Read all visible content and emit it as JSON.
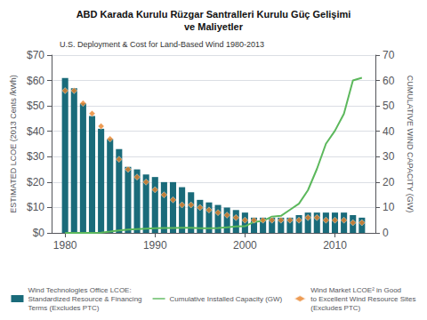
{
  "chart_data": {
    "type": "bar",
    "title": "ABD Karada Kurulu Rüzgar Santralleri Kurulu Güç Gelişimi\nve Maliyetler",
    "subtitle": "U.S. Deployment & Cost for Land-Based Wind 1980-2013",
    "ylabel": "ESTIMATED LCOE (2013 Cents /kWh)",
    "y2label": "CUMULATIVE WIND CAPACITY (GW)",
    "x": [
      1980,
      1981,
      1982,
      1983,
      1984,
      1985,
      1986,
      1987,
      1988,
      1989,
      1990,
      1991,
      1992,
      1993,
      1994,
      1995,
      1996,
      1997,
      1998,
      1999,
      2000,
      2001,
      2002,
      2003,
      2004,
      2005,
      2006,
      2007,
      2008,
      2009,
      2010,
      2011,
      2012,
      2013
    ],
    "xlim": [
      1978.5,
      2014.5
    ],
    "xticks": [
      1980,
      1990,
      2000,
      2010
    ],
    "ylim": [
      0,
      70
    ],
    "yticks": [
      {
        "value": 0,
        "label": "$0"
      },
      {
        "value": 10,
        "label": "$10"
      },
      {
        "value": 20,
        "label": "$20"
      },
      {
        "value": 30,
        "label": "$30"
      },
      {
        "value": 40,
        "label": "$40"
      },
      {
        "value": 50,
        "label": "$50"
      },
      {
        "value": 60,
        "label": "$60"
      },
      {
        "value": 70,
        "label": "$70"
      }
    ],
    "y2lim": [
      0,
      70
    ],
    "y2ticks": [
      0,
      10,
      20,
      30,
      40,
      50,
      60,
      70
    ],
    "grid": true,
    "legend": "bottom",
    "series": [
      {
        "name": "Wind Technologies Office LCOE:\nStandardized Resource & Financing\nTerms (Excludes PTC)",
        "type": "bar",
        "color": "#1a6b7a",
        "values": [
          61,
          57,
          51,
          46,
          41,
          37,
          33,
          26,
          25,
          23,
          22,
          20,
          20,
          18,
          16,
          13,
          12,
          11,
          10,
          9,
          8,
          6,
          6,
          6,
          6,
          6,
          7,
          8,
          8,
          8,
          8,
          8,
          7,
          6
        ]
      },
      {
        "name": "Cumulative Installed Capacity (GW)",
        "type": "line",
        "color": "#5cb85c",
        "axis": "y2",
        "values": [
          0.01,
          0.01,
          0.01,
          0.02,
          0.1,
          0.5,
          1.0,
          1.3,
          1.5,
          1.7,
          1.8,
          1.9,
          1.9,
          2.0,
          2.0,
          1.8,
          1.8,
          1.9,
          2.2,
          2.5,
          2.6,
          4.3,
          4.7,
          6.4,
          6.7,
          9.1,
          11.5,
          16.8,
          25.2,
          35.1,
          40.2,
          46.9,
          60.0,
          61.1
        ]
      },
      {
        "name": "Wind Market LCOE² in Good\nto Excellent Wind Resource Sites\n(Excludes PTC)",
        "type": "scatter",
        "color": "#e8832a",
        "marker": "diamond",
        "values": [
          56,
          56,
          51,
          47,
          42,
          37,
          29,
          25,
          22,
          20,
          17,
          15,
          13,
          11,
          11,
          10,
          9,
          8,
          7,
          6,
          5,
          5,
          5,
          5,
          5,
          5,
          5,
          6,
          6,
          5,
          5,
          5,
          4,
          4
        ]
      }
    ]
  }
}
